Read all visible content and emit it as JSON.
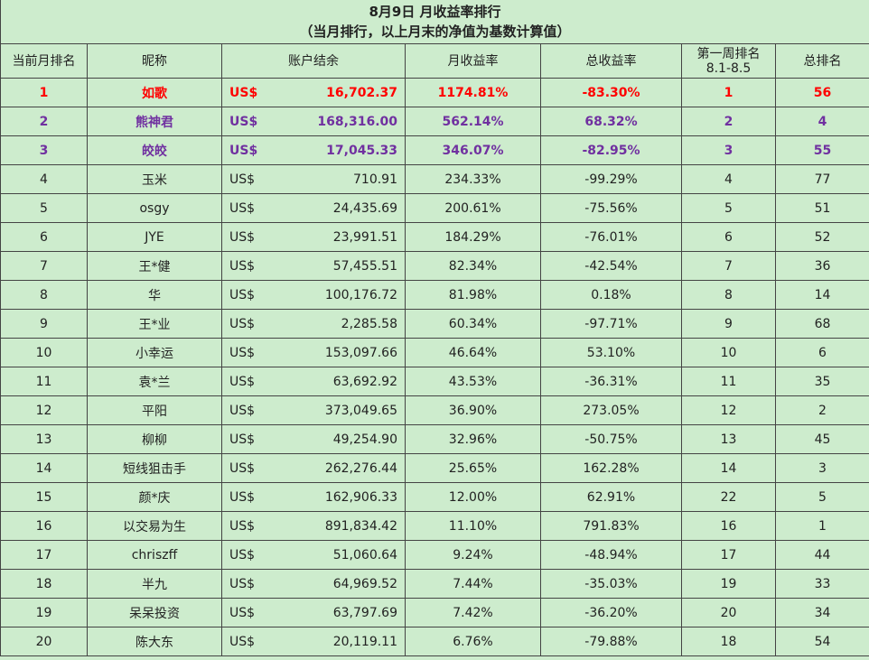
{
  "title": {
    "line1": "8月9日 月收益率排行",
    "line2": "（当月排行，以上月末的净值为基数计算值）"
  },
  "headers": {
    "rank": "当前月排名",
    "nickname": "昵称",
    "balance": "账户结余",
    "monthly_return": "月收益率",
    "total_return": "总收益率",
    "week1_rank_line1": "第一周排名",
    "week1_rank_line2": "8.1-8.5",
    "total_rank": "总排名"
  },
  "highlight_colors": {
    "first": "#ff0000",
    "second_third": "#7030a0"
  },
  "rows": [
    {
      "rank": "1",
      "name": "如歌",
      "currency": "US$",
      "balance": "16,702.37",
      "monthly": "1174.81%",
      "total": "-83.30%",
      "week1": "1",
      "total_rank": "56"
    },
    {
      "rank": "2",
      "name": "熊神君",
      "currency": "US$",
      "balance": "168,316.00",
      "monthly": "562.14%",
      "total": "68.32%",
      "week1": "2",
      "total_rank": "4"
    },
    {
      "rank": "3",
      "name": "皎皎",
      "currency": "US$",
      "balance": "17,045.33",
      "monthly": "346.07%",
      "total": "-82.95%",
      "week1": "3",
      "total_rank": "55"
    },
    {
      "rank": "4",
      "name": "玉米",
      "currency": "US$",
      "balance": "710.91",
      "monthly": "234.33%",
      "total": "-99.29%",
      "week1": "4",
      "total_rank": "77"
    },
    {
      "rank": "5",
      "name": "osgy",
      "currency": "US$",
      "balance": "24,435.69",
      "monthly": "200.61%",
      "total": "-75.56%",
      "week1": "5",
      "total_rank": "51"
    },
    {
      "rank": "6",
      "name": "JYE",
      "currency": "US$",
      "balance": "23,991.51",
      "monthly": "184.29%",
      "total": "-76.01%",
      "week1": "6",
      "total_rank": "52"
    },
    {
      "rank": "7",
      "name": "王*健",
      "currency": "US$",
      "balance": "57,455.51",
      "monthly": "82.34%",
      "total": "-42.54%",
      "week1": "7",
      "total_rank": "36"
    },
    {
      "rank": "8",
      "name": "华",
      "currency": "US$",
      "balance": "100,176.72",
      "monthly": "81.98%",
      "total": "0.18%",
      "week1": "8",
      "total_rank": "14"
    },
    {
      "rank": "9",
      "name": "王*业",
      "currency": "US$",
      "balance": "2,285.58",
      "monthly": "60.34%",
      "total": "-97.71%",
      "week1": "9",
      "total_rank": "68"
    },
    {
      "rank": "10",
      "name": "小幸运",
      "currency": "US$",
      "balance": "153,097.66",
      "monthly": "46.64%",
      "total": "53.10%",
      "week1": "10",
      "total_rank": "6"
    },
    {
      "rank": "11",
      "name": "袁*兰",
      "currency": "US$",
      "balance": "63,692.92",
      "monthly": "43.53%",
      "total": "-36.31%",
      "week1": "11",
      "total_rank": "35"
    },
    {
      "rank": "12",
      "name": "平阳",
      "currency": "US$",
      "balance": "373,049.65",
      "monthly": "36.90%",
      "total": "273.05%",
      "week1": "12",
      "total_rank": "2"
    },
    {
      "rank": "13",
      "name": "柳柳",
      "currency": "US$",
      "balance": "49,254.90",
      "monthly": "32.96%",
      "total": "-50.75%",
      "week1": "13",
      "total_rank": "45"
    },
    {
      "rank": "14",
      "name": "短线狙击手",
      "currency": "US$",
      "balance": "262,276.44",
      "monthly": "25.65%",
      "total": "162.28%",
      "week1": "14",
      "total_rank": "3"
    },
    {
      "rank": "15",
      "name": "颜*庆",
      "currency": "US$",
      "balance": "162,906.33",
      "monthly": "12.00%",
      "total": "62.91%",
      "week1": "22",
      "total_rank": "5"
    },
    {
      "rank": "16",
      "name": "以交易为生",
      "currency": "US$",
      "balance": "891,834.42",
      "monthly": "11.10%",
      "total": "791.83%",
      "week1": "16",
      "total_rank": "1"
    },
    {
      "rank": "17",
      "name": "chriszff",
      "currency": "US$",
      "balance": "51,060.64",
      "monthly": "9.24%",
      "total": "-48.94%",
      "week1": "17",
      "total_rank": "44"
    },
    {
      "rank": "18",
      "name": "半九",
      "currency": "US$",
      "balance": "64,969.52",
      "monthly": "7.44%",
      "total": "-35.03%",
      "week1": "19",
      "total_rank": "33"
    },
    {
      "rank": "19",
      "name": "呆呆投资",
      "currency": "US$",
      "balance": "63,797.69",
      "monthly": "7.42%",
      "total": "-36.20%",
      "week1": "20",
      "total_rank": "34"
    },
    {
      "rank": "20",
      "name": "陈大东",
      "currency": "US$",
      "balance": "20,119.11",
      "monthly": "6.76%",
      "total": "-79.88%",
      "week1": "18",
      "total_rank": "54"
    }
  ]
}
